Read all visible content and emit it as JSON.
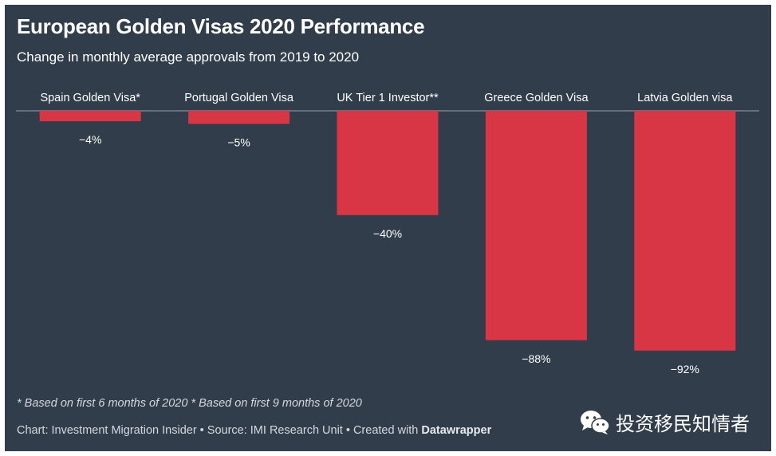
{
  "header": {
    "title": "European Golden Visas 2020 Performance",
    "subtitle": "Change in monthly average approvals from 2019 to 2020"
  },
  "chart_data": {
    "type": "bar",
    "orientation": "vertical-negative",
    "categories": [
      "Spain Golden Visa*",
      "Portugal Golden Visa",
      "UK Tier 1 Investor**",
      "Greece Golden Visa",
      "Latvia Golden visa"
    ],
    "values": [
      -4,
      -5,
      -40,
      -88,
      -92
    ],
    "value_labels": [
      "−4%",
      "−5%",
      "−40%",
      "−88%",
      "−92%"
    ],
    "unit": "%",
    "ylim": [
      -100,
      0
    ],
    "bar_color": "#d83545",
    "title": "European Golden Visas 2020 Performance",
    "xlabel": "",
    "ylabel": ""
  },
  "footer": {
    "notes": "* Based on first 6 months of 2020 * Based on first 9 months of 2020",
    "credit_prefix": "Chart: Investment Migration Insider • Source: IMI Research Unit • Created with ",
    "credit_tool": "Datawrapper"
  },
  "watermark": {
    "icon": "wechat-icon",
    "text": "投资移民知情者"
  },
  "colors": {
    "background": "#323d4c",
    "bar": "#d83545",
    "text": "#ffffff",
    "baseline": "#9aa3ae"
  }
}
